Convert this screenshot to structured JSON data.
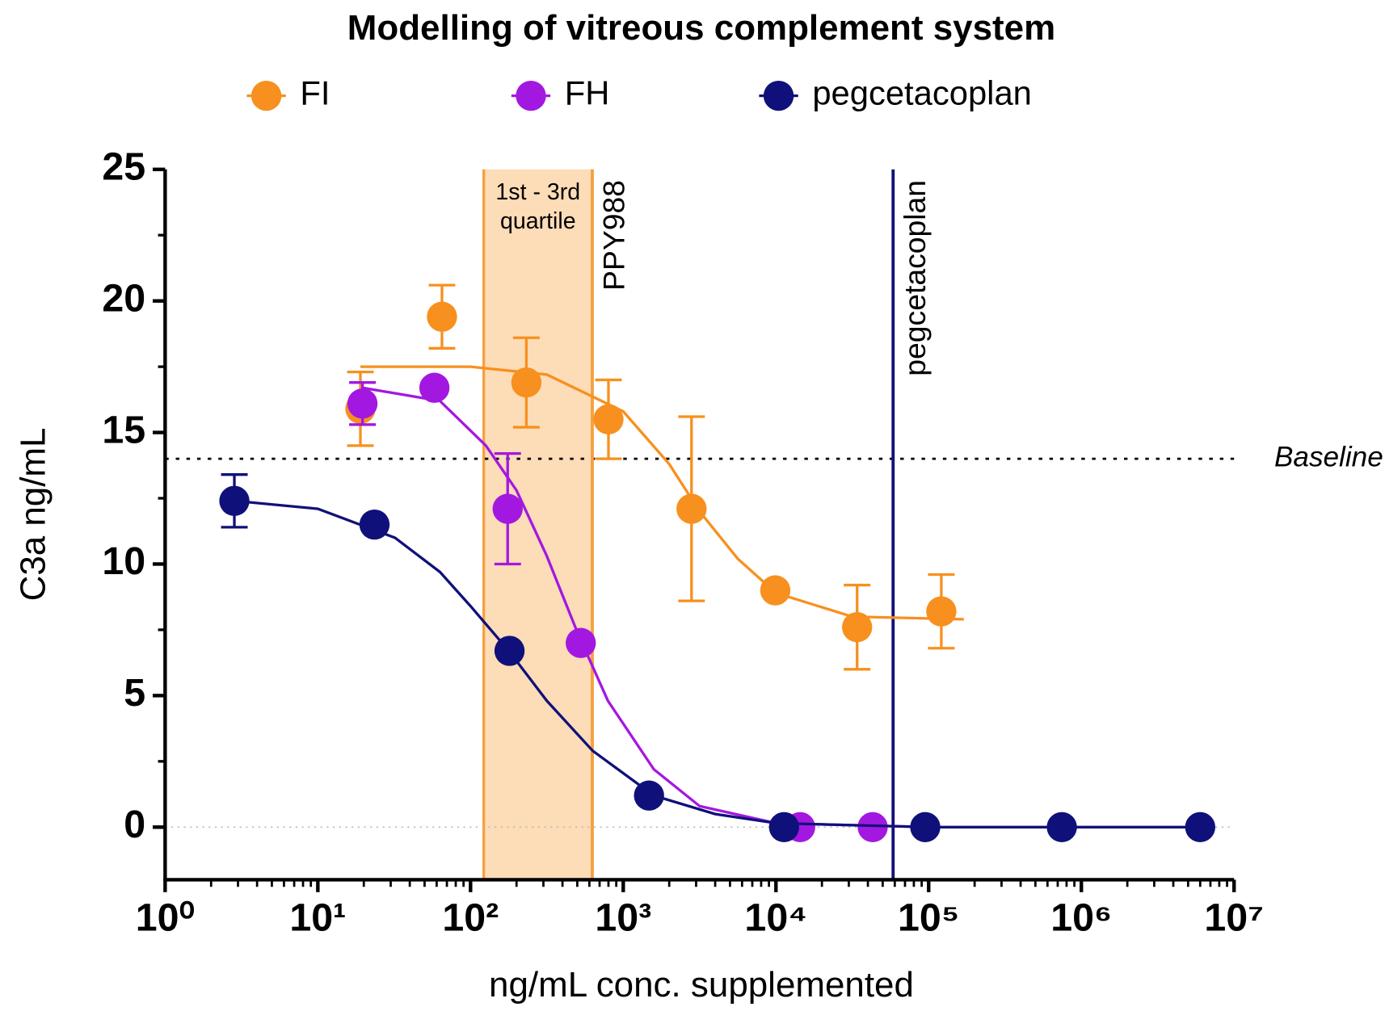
{
  "chart_data": {
    "type": "scatter",
    "title": "Modelling of vitreous complement system",
    "x_label": "ng/mL conc. supplemented",
    "y_label": "C3a ng/mL",
    "log_x": true,
    "xlim": [
      1,
      10000000
    ],
    "ylim": [
      -2,
      25
    ],
    "xticks": [
      {
        "value": 1,
        "label": "10⁰"
      },
      {
        "value": 10,
        "label": "10¹"
      },
      {
        "value": 100,
        "label": "10²"
      },
      {
        "value": 1000,
        "label": "10³"
      },
      {
        "value": 10000,
        "label": "10⁴"
      },
      {
        "value": 100000,
        "label": "10⁵"
      },
      {
        "value": 1000000,
        "label": "10⁶"
      },
      {
        "value": 10000000,
        "label": "10⁷"
      }
    ],
    "yticks": [
      0,
      5,
      10,
      15,
      20,
      25
    ],
    "legend": "top",
    "series": [
      {
        "name": "FI",
        "color": "#f7901e",
        "x": [
          19,
          65,
          232,
          800,
          2800,
          9900,
          34000,
          121000
        ],
        "values": [
          15.9,
          19.4,
          16.9,
          15.5,
          12.1,
          9.0,
          7.6,
          8.2
        ],
        "errors": [
          1.4,
          1.2,
          1.7,
          1.5,
          3.5,
          null,
          1.6,
          1.4
        ],
        "fit": {
          "x": [
            19,
            100,
            316,
            1000,
            2000,
            3162,
            5623,
            10000,
            31623,
            170000
          ],
          "values": [
            17.5,
            17.5,
            17.2,
            15.8,
            13.8,
            12.0,
            10.2,
            8.9,
            8.0,
            7.9
          ]
        }
      },
      {
        "name": "FH",
        "color": "#a318e0",
        "x": [
          19.6,
          58,
          175,
          527,
          14400,
          43000
        ],
        "values": [
          16.1,
          16.7,
          12.1,
          7.0,
          0,
          0
        ],
        "errors": [
          0.8,
          null,
          2.1,
          null,
          null,
          null
        ],
        "fit": {
          "x": [
            19.6,
            63,
            126,
            200,
            316,
            501,
            794,
            1585,
            3162,
            10000,
            100000
          ],
          "values": [
            16.7,
            16.2,
            14.5,
            12.8,
            10.3,
            7.4,
            4.8,
            2.2,
            0.8,
            0.15,
            0
          ]
        }
      },
      {
        "name": "pegcetacoplan",
        "color": "#10107a",
        "x": [
          2.84,
          23.5,
          180,
          1475,
          11300,
          95000,
          745000,
          6000000
        ],
        "values": [
          12.4,
          11.5,
          6.7,
          1.2,
          0,
          0,
          0,
          0
        ],
        "errors": [
          1.0,
          null,
          null,
          null,
          null,
          null,
          null,
          null
        ],
        "fit": {
          "x": [
            2.84,
            10,
            32,
            63,
            100,
            178,
            316,
            631,
            1585,
            3981,
            10000,
            100000,
            6000000
          ],
          "values": [
            12.4,
            12.1,
            11.0,
            9.7,
            8.4,
            6.7,
            4.8,
            2.9,
            1.2,
            0.5,
            0.15,
            0,
            0
          ]
        }
      }
    ],
    "band": {
      "x": [
        122,
        627
      ],
      "color": "#fddcb8",
      "label": [
        "1st - 3rd",
        "quartile"
      ]
    },
    "vlines": [
      {
        "x": 627,
        "label": "PPY988",
        "color": "#f7a040"
      },
      {
        "x": 58500,
        "label": "pegcetacoplan",
        "color": "#10107a"
      }
    ],
    "hline": {
      "y": 14,
      "label": "Baseline"
    }
  }
}
